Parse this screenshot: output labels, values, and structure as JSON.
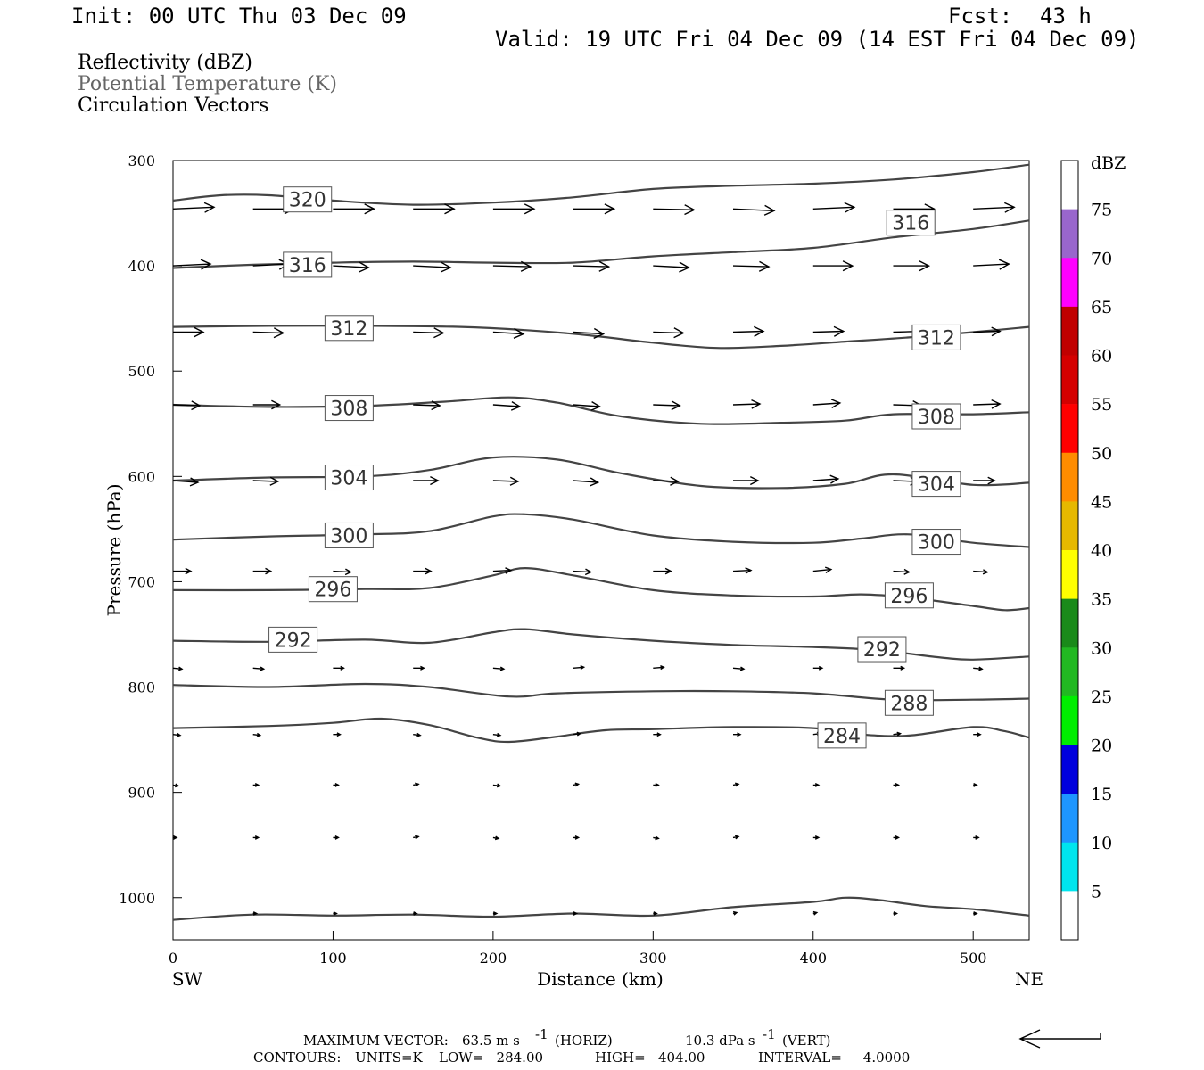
{
  "header": {
    "init": "Init: 00 UTC Thu 03 Dec 09",
    "fcst_label": "Fcst:",
    "fcst_value": "43 h",
    "valid": "Valid: 19 UTC Fri 04 Dec 09 (14 EST Fri 04 Dec 09)"
  },
  "fields": [
    {
      "label": "Reflectivity (dBZ)",
      "color": "#000000"
    },
    {
      "label": "Potential Temperature (K)",
      "color": "#666666"
    },
    {
      "label": "Circulation Vectors",
      "color": "#000000"
    }
  ],
  "chart_data": {
    "type": "cross-section",
    "xlabel": "Distance (km)",
    "ylabel": "Pressure (hPa)",
    "xlim": [
      0,
      535
    ],
    "ylim": [
      1040,
      300
    ],
    "y_reversed": true,
    "x_ticks": [
      0,
      100,
      200,
      300,
      400,
      500
    ],
    "y_ticks": [
      300,
      400,
      500,
      600,
      700,
      800,
      900,
      1000
    ],
    "x_end_labels": {
      "left": "SW",
      "right": "NE"
    },
    "contour_field": "Potential Temperature (K)",
    "contours": [
      {
        "level": 320,
        "labels": [
          {
            "x": 84,
            "p": 337
          }
        ],
        "points": [
          [
            0,
            338
          ],
          [
            30,
            333
          ],
          [
            60,
            333
          ],
          [
            100,
            338
          ],
          [
            150,
            342
          ],
          [
            200,
            340
          ],
          [
            250,
            335
          ],
          [
            300,
            327
          ],
          [
            350,
            324
          ],
          [
            400,
            322
          ],
          [
            450,
            318
          ],
          [
            500,
            311
          ],
          [
            535,
            304
          ]
        ]
      },
      {
        "level": 316,
        "labels": [
          {
            "x": 84,
            "p": 399
          },
          {
            "x": 461,
            "p": 359
          }
        ],
        "points": [
          [
            0,
            402
          ],
          [
            50,
            399
          ],
          [
            100,
            397
          ],
          [
            150,
            396
          ],
          [
            200,
            397
          ],
          [
            250,
            397
          ],
          [
            300,
            391
          ],
          [
            350,
            387
          ],
          [
            400,
            383
          ],
          [
            450,
            373
          ],
          [
            500,
            365
          ],
          [
            535,
            357
          ]
        ]
      },
      {
        "level": 312,
        "labels": [
          {
            "x": 110,
            "p": 459
          },
          {
            "x": 477,
            "p": 468
          }
        ],
        "points": [
          [
            0,
            458
          ],
          [
            60,
            457
          ],
          [
            120,
            457
          ],
          [
            180,
            458
          ],
          [
            220,
            461
          ],
          [
            260,
            466
          ],
          [
            300,
            473
          ],
          [
            340,
            478
          ],
          [
            380,
            476
          ],
          [
            420,
            472
          ],
          [
            460,
            468
          ],
          [
            500,
            463
          ],
          [
            535,
            458
          ]
        ]
      },
      {
        "level": 308,
        "labels": [
          {
            "x": 110,
            "p": 535
          },
          {
            "x": 477,
            "p": 543
          }
        ],
        "points": [
          [
            0,
            532
          ],
          [
            60,
            534
          ],
          [
            120,
            533
          ],
          [
            170,
            529
          ],
          [
            210,
            525
          ],
          [
            240,
            530
          ],
          [
            280,
            543
          ],
          [
            330,
            550
          ],
          [
            380,
            549
          ],
          [
            420,
            547
          ],
          [
            450,
            541
          ],
          [
            500,
            541
          ],
          [
            535,
            539
          ]
        ]
      },
      {
        "level": 304,
        "labels": [
          {
            "x": 110,
            "p": 601
          },
          {
            "x": 477,
            "p": 607
          }
        ],
        "points": [
          [
            0,
            604
          ],
          [
            60,
            601
          ],
          [
            120,
            600
          ],
          [
            160,
            594
          ],
          [
            200,
            582
          ],
          [
            240,
            584
          ],
          [
            280,
            597
          ],
          [
            330,
            609
          ],
          [
            380,
            611
          ],
          [
            420,
            607
          ],
          [
            450,
            598
          ],
          [
            500,
            608
          ],
          [
            535,
            606
          ]
        ]
      },
      {
        "level": 300,
        "labels": [
          {
            "x": 110,
            "p": 656
          },
          {
            "x": 477,
            "p": 662
          }
        ],
        "points": [
          [
            0,
            660
          ],
          [
            60,
            657
          ],
          [
            120,
            655
          ],
          [
            160,
            652
          ],
          [
            200,
            638
          ],
          [
            220,
            636
          ],
          [
            250,
            641
          ],
          [
            300,
            656
          ],
          [
            350,
            662
          ],
          [
            400,
            663
          ],
          [
            430,
            659
          ],
          [
            460,
            655
          ],
          [
            500,
            663
          ],
          [
            535,
            667
          ]
        ]
      },
      {
        "level": 296,
        "labels": [
          {
            "x": 100,
            "p": 707
          },
          {
            "x": 460,
            "p": 713
          }
        ],
        "points": [
          [
            0,
            708
          ],
          [
            60,
            708
          ],
          [
            120,
            707
          ],
          [
            160,
            706
          ],
          [
            200,
            694
          ],
          [
            220,
            687
          ],
          [
            250,
            694
          ],
          [
            300,
            708
          ],
          [
            350,
            713
          ],
          [
            400,
            714
          ],
          [
            430,
            712
          ],
          [
            460,
            715
          ],
          [
            500,
            723
          ],
          [
            520,
            727
          ],
          [
            535,
            725
          ]
        ]
      },
      {
        "level": 292,
        "labels": [
          {
            "x": 75,
            "p": 755
          },
          {
            "x": 443,
            "p": 764
          }
        ],
        "points": [
          [
            0,
            756
          ],
          [
            60,
            757
          ],
          [
            120,
            755
          ],
          [
            160,
            758
          ],
          [
            200,
            748
          ],
          [
            220,
            745
          ],
          [
            250,
            750
          ],
          [
            300,
            756
          ],
          [
            350,
            760
          ],
          [
            400,
            762
          ],
          [
            440,
            765
          ],
          [
            480,
            772
          ],
          [
            500,
            774
          ],
          [
            535,
            771
          ]
        ]
      },
      {
        "level": 288,
        "labels": [
          {
            "x": 460,
            "p": 815
          }
        ],
        "points": [
          [
            0,
            798
          ],
          [
            60,
            800
          ],
          [
            120,
            797
          ],
          [
            160,
            800
          ],
          [
            210,
            809
          ],
          [
            240,
            806
          ],
          [
            300,
            804
          ],
          [
            350,
            804
          ],
          [
            400,
            806
          ],
          [
            450,
            812
          ],
          [
            500,
            812
          ],
          [
            535,
            811
          ]
        ]
      },
      {
        "level": 284,
        "labels": [
          {
            "x": 418,
            "p": 846
          }
        ],
        "points": [
          [
            0,
            839
          ],
          [
            60,
            837
          ],
          [
            100,
            834
          ],
          [
            130,
            830
          ],
          [
            160,
            836
          ],
          [
            190,
            848
          ],
          [
            210,
            852
          ],
          [
            240,
            847
          ],
          [
            270,
            841
          ],
          [
            300,
            840
          ],
          [
            350,
            838
          ],
          [
            400,
            839
          ],
          [
            430,
            845
          ],
          [
            460,
            846
          ],
          [
            500,
            838
          ],
          [
            520,
            842
          ],
          [
            535,
            848
          ]
        ]
      },
      {
        "level": 284,
        "labels": [],
        "points": [
          [
            0,
            1021
          ],
          [
            50,
            1016
          ],
          [
            100,
            1017
          ],
          [
            150,
            1016
          ],
          [
            200,
            1018
          ],
          [
            250,
            1015
          ],
          [
            300,
            1017
          ],
          [
            350,
            1009
          ],
          [
            400,
            1004
          ],
          [
            420,
            1000
          ],
          [
            440,
            1002
          ],
          [
            470,
            1008
          ],
          [
            500,
            1011
          ],
          [
            535,
            1017
          ]
        ]
      }
    ],
    "vector_field": "Circulation Vectors",
    "vectors": [
      {
        "p": 346,
        "y0": 346,
        "y1": 344,
        "x": [
          0,
          50,
          100,
          150,
          200,
          250,
          300,
          350,
          400,
          450,
          500
        ],
        "len": [
          46,
          46,
          46,
          46,
          46,
          46,
          46,
          46,
          46,
          46,
          46
        ],
        "dy": [
          -2,
          0,
          0,
          0,
          0,
          0,
          1,
          2,
          -2,
          0,
          -2
        ]
      },
      {
        "p": 400,
        "x": [
          0,
          50,
          100,
          150,
          200,
          250,
          300,
          350,
          400,
          450,
          500
        ],
        "len": [
          42,
          40,
          40,
          42,
          42,
          40,
          40,
          40,
          44,
          40,
          40
        ],
        "dy": [
          -2,
          -2,
          2,
          2,
          1,
          1,
          2,
          1,
          0,
          0,
          -2
        ]
      },
      {
        "p": 463,
        "x": [
          0,
          50,
          100,
          150,
          200,
          250,
          300,
          350,
          400,
          450,
          500
        ],
        "len": [
          34,
          34,
          34,
          34,
          34,
          34,
          34,
          34,
          34,
          34,
          30
        ],
        "dy": [
          0,
          1,
          2,
          1,
          2,
          2,
          1,
          -1,
          -1,
          -1,
          -1
        ]
      },
      {
        "p": 532,
        "x": [
          0,
          50,
          100,
          150,
          200,
          250,
          300,
          350,
          400,
          450,
          500
        ],
        "len": [
          30,
          30,
          30,
          30,
          30,
          30,
          30,
          30,
          30,
          32,
          30
        ],
        "dy": [
          1,
          0,
          2,
          1,
          2,
          2,
          1,
          -1,
          -2,
          1,
          -1
        ]
      },
      {
        "p": 604,
        "x": [
          0,
          50,
          100,
          150,
          200,
          250,
          300,
          350,
          400,
          450,
          500
        ],
        "len": [
          28,
          28,
          28,
          28,
          28,
          28,
          28,
          28,
          28,
          28,
          24
        ],
        "dy": [
          2,
          1,
          1,
          0,
          1,
          2,
          1,
          0,
          -2,
          1,
          0
        ]
      },
      {
        "p": 690,
        "x": [
          0,
          50,
          100,
          150,
          200,
          250,
          300,
          350,
          400,
          450,
          500
        ],
        "len": [
          20,
          20,
          20,
          20,
          20,
          20,
          20,
          20,
          20,
          18,
          16
        ],
        "dy": [
          0,
          0,
          1,
          0,
          -1,
          1,
          0,
          -1,
          -2,
          1,
          1
        ]
      },
      {
        "p": 782,
        "x": [
          0,
          50,
          100,
          150,
          200,
          250,
          300,
          350,
          400,
          450,
          500
        ],
        "len": [
          10,
          12,
          12,
          12,
          12,
          12,
          12,
          12,
          10,
          12,
          10
        ],
        "dy": [
          1,
          1,
          0,
          0,
          1,
          -1,
          -1,
          1,
          0,
          0,
          1
        ]
      },
      {
        "p": 845,
        "x": [
          0,
          50,
          100,
          150,
          200,
          250,
          300,
          350,
          400,
          450,
          500
        ],
        "len": [
          8,
          8,
          8,
          8,
          8,
          8,
          8,
          8,
          8,
          8,
          8
        ],
        "dy": [
          1,
          1,
          0,
          1,
          1,
          -1,
          0,
          0,
          -1,
          -1,
          0
        ]
      },
      {
        "p": 893,
        "x": [
          0,
          50,
          100,
          150,
          200,
          250,
          300,
          350,
          400,
          450,
          500
        ],
        "len": [
          6,
          6,
          6,
          6,
          8,
          6,
          6,
          6,
          6,
          6,
          4
        ],
        "dy": [
          1,
          0,
          0,
          -1,
          1,
          -1,
          0,
          -1,
          0,
          0,
          0
        ]
      },
      {
        "p": 943,
        "x": [
          0,
          50,
          100,
          150,
          200,
          250,
          300,
          350,
          400,
          450,
          500
        ],
        "len": [
          4,
          6,
          6,
          6,
          6,
          6,
          6,
          6,
          6,
          6,
          6
        ],
        "dy": [
          0,
          0,
          0,
          -1,
          1,
          0,
          1,
          -1,
          0,
          0,
          0
        ]
      },
      {
        "p": 1015,
        "x": [
          50,
          100,
          150,
          200,
          250,
          300,
          350,
          400,
          450,
          500
        ],
        "len": [
          4,
          4,
          4,
          4,
          4,
          4,
          4,
          4,
          4,
          4
        ],
        "dy": [
          0,
          0,
          0,
          0,
          0,
          0,
          -1,
          -1,
          0,
          0
        ]
      }
    ],
    "colorbar": {
      "title": "dBZ",
      "labels": [
        "75",
        "70",
        "65",
        "60",
        "55",
        "50",
        "45",
        "40",
        "35",
        "30",
        "25",
        "20",
        "15",
        "10",
        "5"
      ],
      "colors": [
        "#ffffff",
        "#9966cc",
        "#ff00ff",
        "#c00000",
        "#d40000",
        "#ff0000",
        "#ff8c00",
        "#e6b800",
        "#ffff00",
        "#1a8a1a",
        "#22b822",
        "#00ee00",
        "#0000dd",
        "#1e96ff",
        "#00e5ee",
        "#ffffff"
      ]
    },
    "legend_vector": {
      "direction": "left"
    }
  },
  "footer": {
    "max_vector_label": "MAXIMUM VECTOR:",
    "max_vector_horiz": "63.5 m s",
    "horiz_tag": "(HORIZ)",
    "max_vector_vert": "10.3 dPa s",
    "vert_tag": "(VERT)",
    "exp": "-1",
    "contours_label": "CONTOURS:",
    "units": "UNITS=K",
    "low": "LOW=   284.00",
    "high": "HIGH=   404.00",
    "interval": "INTERVAL=     4.0000"
  }
}
